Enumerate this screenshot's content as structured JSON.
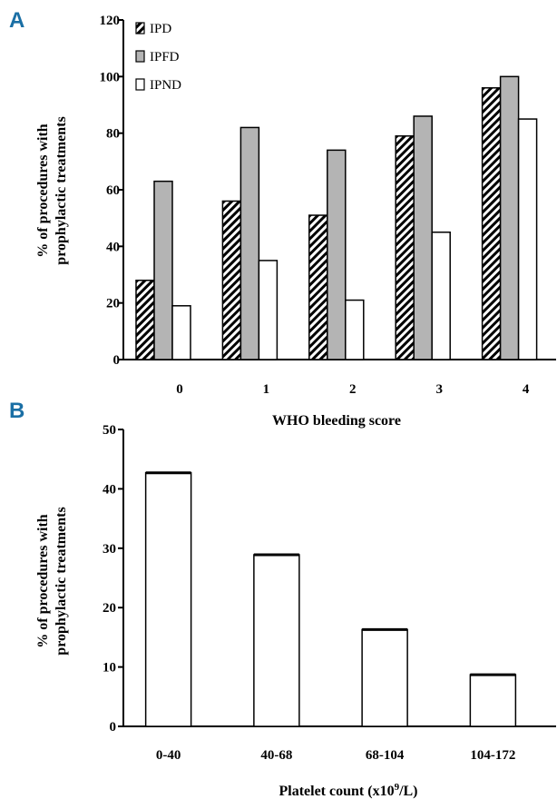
{
  "colors": {
    "panel_letter": "#1a6fa5",
    "IPD": "hatch",
    "IPFD": "#b4b4b4",
    "IPND": "#ffffff",
    "platelet": "#ffffff"
  },
  "chart_data": [
    {
      "panel": "A",
      "type": "bar",
      "categories": [
        "0",
        "1",
        "2",
        "3",
        "4"
      ],
      "series": [
        {
          "name": "IPD",
          "values": [
            28,
            56,
            51,
            79,
            96
          ]
        },
        {
          "name": "IPFD",
          "values": [
            63,
            82,
            74,
            86,
            100
          ]
        },
        {
          "name": "IPND",
          "values": [
            19,
            35,
            21,
            45,
            85
          ]
        }
      ],
      "ylim": [
        0,
        120
      ],
      "yticks": [
        0,
        20,
        40,
        60,
        80,
        100,
        120
      ],
      "xlabel": "WHO bleeding score",
      "ylabel_line1": "% of procedures with",
      "ylabel_line2": "prophylactic treatments",
      "legend_position": "top-left",
      "grid": false
    },
    {
      "panel": "B",
      "type": "bar",
      "categories": [
        "0-40",
        "40-68",
        "68-104",
        "104-172"
      ],
      "values": [
        42.7,
        28.9,
        16.3,
        8.7
      ],
      "ylim": [
        0,
        50
      ],
      "yticks": [
        0,
        10,
        20,
        30,
        40,
        50
      ],
      "xlabel_main": "Platelet count (x10",
      "xlabel_sup": "9",
      "xlabel_tail": "/L)",
      "ylabel_line1": "% of procedures with",
      "ylabel_line2": "prophylactic treatments",
      "grid": false
    }
  ]
}
